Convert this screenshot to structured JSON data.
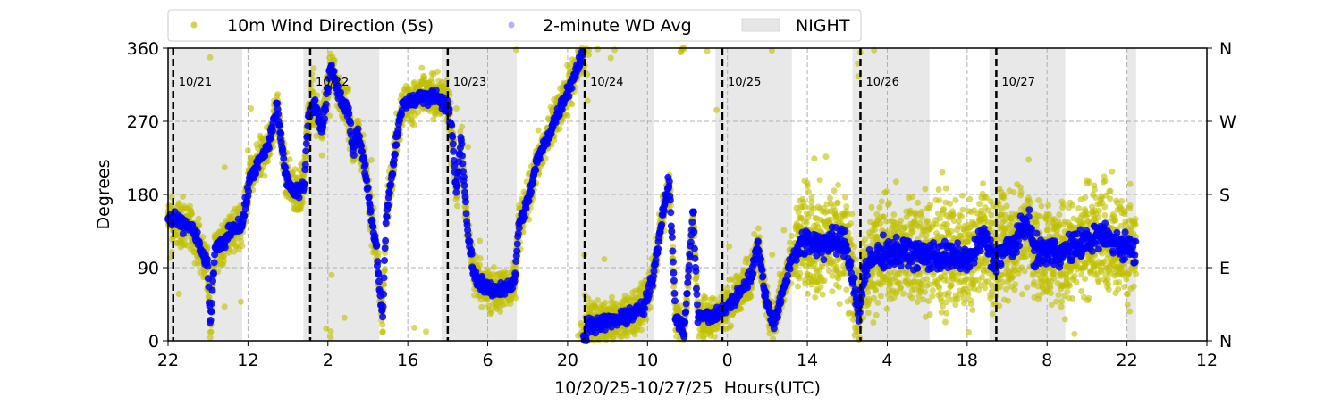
{
  "chart_data": {
    "type": "scatter",
    "xlabel": "10/20/25-10/27/25  Hours(UTC)",
    "ylabel": "Degrees",
    "xlim_hours": [
      0,
      182
    ],
    "ylim": [
      0,
      360
    ],
    "x_tick_labels": [
      "22",
      "12",
      "2",
      "16",
      "6",
      "20",
      "10",
      "0",
      "14",
      "4",
      "18",
      "8",
      "22",
      "12"
    ],
    "x_tick_step_hours": 14,
    "y_ticks": [
      0,
      90,
      180,
      270,
      360
    ],
    "y_right_labels": [
      "N",
      "E",
      "S",
      "W",
      "N"
    ],
    "grid": true,
    "legend_placement": "top-left, above plot",
    "legend": [
      {
        "label": "10m Wind Direction (5s)",
        "color": "#bfbf00"
      },
      {
        "label": "2-minute WD Avg",
        "color": "#0000ff"
      },
      {
        "label": "NIGHT",
        "color": "#e6e6e6"
      }
    ],
    "day_markers": [
      {
        "hour": 0.9,
        "label": "10/21"
      },
      {
        "hour": 24.9,
        "label": "10/22"
      },
      {
        "hour": 49.0,
        "label": "10/23"
      },
      {
        "hour": 73.0,
        "label": "10/24"
      },
      {
        "hour": 97.1,
        "label": "10/25"
      },
      {
        "hour": 121.3,
        "label": "10/26"
      },
      {
        "hour": 145.1,
        "label": "10/27"
      }
    ],
    "night_periods_hours": [
      [
        0,
        13
      ],
      [
        23.7,
        37
      ],
      [
        47.9,
        61.1
      ],
      [
        71.9,
        85.1
      ],
      [
        95.9,
        109.3
      ],
      [
        119.9,
        133.4
      ],
      [
        143.9,
        157.2
      ],
      [
        168,
        169.6
      ]
    ],
    "avg_series_keypoints": [
      [
        0,
        150
      ],
      [
        1.9,
        145
      ],
      [
        4.2,
        140
      ],
      [
        5.8,
        110
      ],
      [
        6.9,
        95
      ],
      [
        7.4,
        20
      ],
      [
        8.2,
        110
      ],
      [
        9.7,
        120
      ],
      [
        11.3,
        140
      ],
      [
        12.9,
        140
      ],
      [
        14.4,
        200
      ],
      [
        16,
        220
      ],
      [
        17.6,
        240
      ],
      [
        19.1,
        290
      ],
      [
        19.9,
        240
      ],
      [
        20.7,
        200
      ],
      [
        22.3,
        180
      ],
      [
        23.8,
        190
      ],
      [
        24.6,
        280
      ],
      [
        25.7,
        290
      ],
      [
        27,
        260
      ],
      [
        28.5,
        340
      ],
      [
        30.1,
        300
      ],
      [
        31.7,
        280
      ],
      [
        32.4,
        230
      ],
      [
        33.2,
        260
      ],
      [
        34.8,
        200
      ],
      [
        35.6,
        150
      ],
      [
        36.4,
        120
      ],
      [
        37.1,
        60
      ],
      [
        37.6,
        30
      ],
      [
        38.2,
        150
      ],
      [
        39.5,
        220
      ],
      [
        40.3,
        260
      ],
      [
        41.1,
        290
      ],
      [
        44.2,
        300
      ],
      [
        47.3,
        300
      ],
      [
        48.9,
        290
      ],
      [
        49.7,
        260
      ],
      [
        50.5,
        180
      ],
      [
        51.3,
        250
      ],
      [
        52.4,
        140
      ],
      [
        53.6,
        80
      ],
      [
        56.7,
        60
      ],
      [
        60.7,
        70
      ],
      [
        61.4,
        140
      ],
      [
        63,
        170
      ],
      [
        64.6,
        220
      ],
      [
        67.7,
        270
      ],
      [
        70.8,
        320
      ],
      [
        72.7,
        355
      ],
      [
        73.7,
        20
      ],
      [
        78.7,
        25
      ],
      [
        83.4,
        40
      ],
      [
        85,
        80
      ],
      [
        86.5,
        150
      ],
      [
        87.8,
        200
      ],
      [
        88.9,
        30
      ],
      [
        90.4,
        10
      ],
      [
        92,
        160
      ],
      [
        92.8,
        30
      ],
      [
        95.9,
        30
      ],
      [
        99.1,
        50
      ],
      [
        102.2,
        80
      ],
      [
        103.4,
        120
      ],
      [
        104.5,
        60
      ],
      [
        106.1,
        20
      ],
      [
        107.7,
        60
      ],
      [
        109.2,
        100
      ],
      [
        110.8,
        120
      ],
      [
        113.9,
        120
      ],
      [
        118.7,
        120
      ],
      [
        120.2,
        70
      ],
      [
        121,
        30
      ],
      [
        121.8,
        80
      ],
      [
        123.4,
        100
      ],
      [
        125.7,
        110
      ],
      [
        140.6,
        100
      ],
      [
        142.9,
        130
      ],
      [
        144.5,
        100
      ],
      [
        148.4,
        120
      ],
      [
        150.8,
        150
      ],
      [
        151.6,
        110
      ],
      [
        157,
        110
      ],
      [
        163.3,
        130
      ],
      [
        169.6,
        110
      ]
    ],
    "raw_spread_deg": {
      "before_hour_110": 18,
      "after_hour_110": 45
    }
  }
}
